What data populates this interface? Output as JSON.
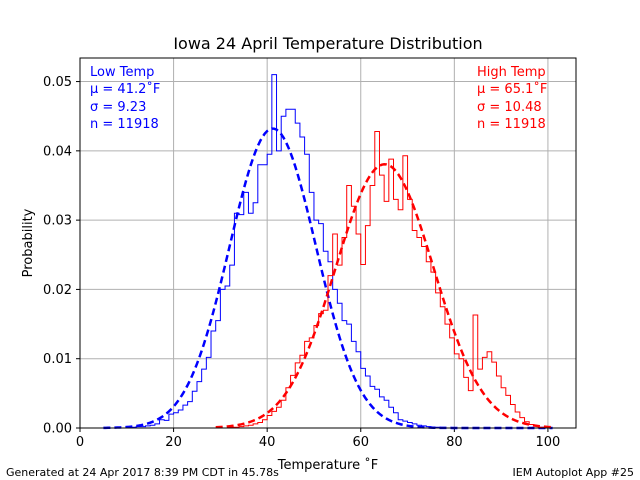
{
  "title": "Iowa 24 April Temperature Distribution",
  "xlabel": "Temperature ˚F",
  "ylabel": "Probability",
  "footer_left": "Generated at 24 Apr 2017 8:39 PM CDT in 45.78s",
  "footer_right": "IEM Autoplot App #25",
  "colors": {
    "low": "#0000ff",
    "high": "#ff0000",
    "grid": "#b0b0b0"
  },
  "chart_data": {
    "type": "line",
    "xlim": [
      0,
      106
    ],
    "ylim": [
      0,
      0.0534
    ],
    "xticks": [
      0,
      20,
      40,
      60,
      80,
      100
    ],
    "yticks": [
      0.0,
      0.01,
      0.02,
      0.03,
      0.04,
      0.05
    ],
    "xtick_labels": [
      "0",
      "20",
      "40",
      "60",
      "80",
      "100"
    ],
    "ytick_labels": [
      "0.00",
      "0.01",
      "0.02",
      "0.03",
      "0.04",
      "0.05"
    ],
    "grid": true,
    "series": [
      {
        "name": "Low Temp",
        "color": "#0000ff",
        "stats": [
          "μ = 41.2˚F",
          "σ = 9.23",
          "n = 11918"
        ],
        "mu": 41.2,
        "sigma": 9.23,
        "fit_range": [
          5,
          101
        ],
        "histogram": {
          "bin_width": 1,
          "start": 5,
          "values": [
            0.0,
            0.0,
            0.0,
            0.0,
            0.0,
            0.0001,
            0.0001,
            0.0002,
            0.0002,
            0.0003,
            0.0004,
            0.0006,
            0.0012,
            0.0011,
            0.002,
            0.0022,
            0.0026,
            0.0033,
            0.0038,
            0.0053,
            0.0067,
            0.0085,
            0.0102,
            0.014,
            0.0155,
            0.02,
            0.0205,
            0.0235,
            0.031,
            0.0308,
            0.034,
            0.031,
            0.0325,
            0.038,
            0.038,
            0.0395,
            0.051,
            0.04,
            0.045,
            0.046,
            0.046,
            0.044,
            0.042,
            0.0395,
            0.034,
            0.03,
            0.0295,
            0.0255,
            0.024,
            0.02,
            0.018,
            0.0155,
            0.015,
            0.0125,
            0.011,
            0.0086,
            0.0075,
            0.006,
            0.0056,
            0.0045,
            0.004,
            0.003,
            0.0022,
            0.0012,
            0.001,
            0.0008,
            0.0006,
            0.0004,
            0.0003,
            0.0002,
            0.0001,
            0.0001,
            0.0,
            0.0
          ]
        }
      },
      {
        "name": "High Temp",
        "color": "#ff0000",
        "stats": [
          "μ = 65.1˚F",
          "σ = 10.48",
          "n = 11918"
        ],
        "mu": 65.1,
        "sigma": 10.48,
        "fit_range": [
          29,
          101
        ],
        "histogram": {
          "bin_width": 1,
          "start": 29,
          "values": [
            0.0,
            0.0,
            0.0,
            0.0001,
            0.0001,
            0.0002,
            0.0003,
            0.0004,
            0.0006,
            0.0008,
            0.0012,
            0.0018,
            0.0024,
            0.003,
            0.004,
            0.0058,
            0.0076,
            0.0094,
            0.0105,
            0.0125,
            0.013,
            0.0148,
            0.0165,
            0.017,
            0.022,
            0.028,
            0.0235,
            0.0275,
            0.035,
            0.032,
            0.028,
            0.0236,
            0.0292,
            0.035,
            0.0428,
            0.0365,
            0.0327,
            0.0388,
            0.033,
            0.0315,
            0.0393,
            0.033,
            0.0285,
            0.0275,
            0.0262,
            0.024,
            0.0225,
            0.0195,
            0.0175,
            0.015,
            0.013,
            0.0107,
            0.01,
            0.0073,
            0.0054,
            0.0163,
            0.0085,
            0.0102,
            0.011,
            0.0095,
            0.0075,
            0.0058,
            0.0047,
            0.0034,
            0.0023,
            0.0015,
            0.0009,
            0.0005,
            0.0003,
            0.0001,
            0.0,
            0.0
          ]
        }
      }
    ]
  }
}
